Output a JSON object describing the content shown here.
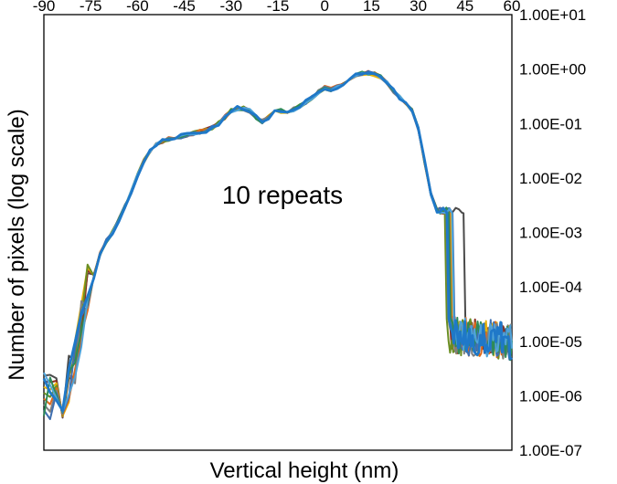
{
  "chart_data": {
    "type": "line",
    "title": "",
    "xlabel": "Vertical height (nm)",
    "ylabel": "Number of pixels (log scale)",
    "annotation": "10 repeats",
    "x_ticks": [
      "-90",
      "-75",
      "-60",
      "-45",
      "-30",
      "-15",
      "0",
      "15",
      "30",
      "45",
      "60"
    ],
    "y_ticks": [
      "1.00E+01",
      "1.00E+00",
      "1.00E-01",
      "1.00E-02",
      "1.00E-03",
      "1.00E-04",
      "1.00E-05",
      "1.00E-06",
      "1.00E-07"
    ],
    "xlim": [
      -90,
      60
    ],
    "ylim": [
      1e-07,
      10
    ],
    "y_scale": "log",
    "x_axis_position": "top",
    "y_axis_position": "right",
    "grid": false,
    "legend": "none",
    "base_curve": {
      "x": [
        -90,
        -88,
        -86,
        -84,
        -82,
        -80,
        -78,
        -76,
        -74,
        -72,
        -70,
        -68,
        -66,
        -64,
        -62,
        -60,
        -58,
        -56,
        -54,
        -52,
        -50,
        -48,
        -46,
        -44,
        -42,
        -40,
        -38,
        -36,
        -34,
        -32,
        -30,
        -28,
        -26,
        -24,
        -22,
        -20,
        -18,
        -16,
        -14,
        -12,
        -10,
        -8,
        -6,
        -4,
        -2,
        0,
        2,
        4,
        6,
        8,
        10,
        12,
        14,
        16,
        18,
        20,
        22,
        24,
        26,
        28,
        30,
        32,
        34,
        36
      ],
      "y": [
        1e-06,
        1e-06,
        1e-06,
        1e-06,
        2e-06,
        4e-06,
        2e-05,
        0.0001,
        0.0002,
        0.0004,
        0.0007,
        0.001,
        0.0017,
        0.003,
        0.0055,
        0.011,
        0.02,
        0.031,
        0.04,
        0.047,
        0.052,
        0.055,
        0.058,
        0.062,
        0.066,
        0.07,
        0.075,
        0.085,
        0.1,
        0.13,
        0.17,
        0.19,
        0.19,
        0.17,
        0.13,
        0.11,
        0.13,
        0.16,
        0.17,
        0.16,
        0.18,
        0.21,
        0.25,
        0.3,
        0.38,
        0.45,
        0.42,
        0.47,
        0.56,
        0.67,
        0.8,
        0.82,
        0.85,
        0.8,
        0.7,
        0.55,
        0.4,
        0.3,
        0.23,
        0.17,
        0.08,
        0.02,
        0.005,
        0.0025
      ]
    },
    "tail": {
      "plateau_y": 0.0025,
      "floor_y": 1.3e-05,
      "end_y": 1e-05
    },
    "series": [
      {
        "color": "#4a4a4a",
        "drop_x": 44.5
      },
      {
        "color": "#8b2f21",
        "drop_x": 39.5
      },
      {
        "color": "#e6b20c",
        "drop_x": 40.5
      },
      {
        "color": "#6b8e23",
        "drop_x": 38.5
      },
      {
        "color": "#e06a1c",
        "drop_x": 40.0
      },
      {
        "color": "#7f7f7f",
        "drop_x": 39.0
      },
      {
        "color": "#3f6fb0",
        "drop_x": 41.0
      },
      {
        "color": "#2e8b57",
        "drop_x": 39.8
      },
      {
        "color": "#4fa3d9",
        "drop_x": 40.8
      },
      {
        "color": "#1f78c8",
        "drop_x": 39.2
      }
    ]
  }
}
